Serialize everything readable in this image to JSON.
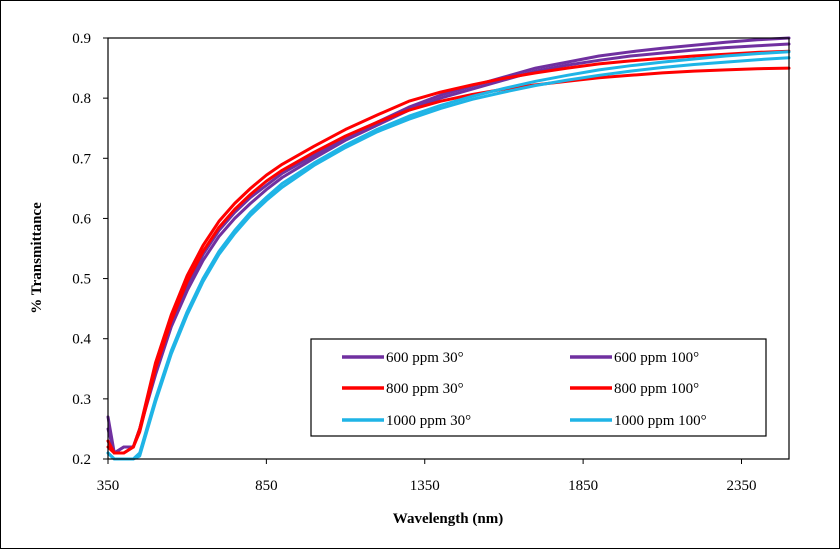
{
  "chart_data": {
    "type": "line",
    "title": "",
    "xlabel": "Wavelength (nm)",
    "ylabel": "% Transmittance",
    "xlim": [
      350,
      2500
    ],
    "ylim": [
      0.2,
      0.9
    ],
    "xticks": [
      350,
      850,
      1350,
      1850,
      2350
    ],
    "xtick_labels": [
      "350",
      "850",
      "1350",
      "1850",
      "2350"
    ],
    "yticks": [
      0.2,
      0.3,
      0.4,
      0.5,
      0.6,
      0.7,
      0.8,
      0.9
    ],
    "ytick_labels": [
      "0.2",
      "0.3",
      "0.4",
      "0.5",
      "0.6",
      "0.7",
      "0.8",
      "0.9"
    ],
    "grid": false,
    "legend_position": "bottom-right",
    "x": [
      350,
      370,
      400,
      430,
      450,
      500,
      550,
      600,
      650,
      700,
      750,
      800,
      850,
      900,
      1000,
      1100,
      1200,
      1300,
      1400,
      1500,
      1600,
      1700,
      1800,
      1900,
      2000,
      2100,
      2200,
      2300,
      2400,
      2500
    ],
    "series": [
      {
        "name": "600 ppm 30°",
        "color": "#7030a0",
        "values": [
          0.27,
          0.21,
          0.22,
          0.22,
          0.25,
          0.35,
          0.43,
          0.49,
          0.54,
          0.58,
          0.61,
          0.635,
          0.655,
          0.675,
          0.705,
          0.735,
          0.76,
          0.785,
          0.805,
          0.82,
          0.835,
          0.85,
          0.86,
          0.87,
          0.877,
          0.883,
          0.888,
          0.893,
          0.897,
          0.9
        ]
      },
      {
        "name": "600 ppm 100°",
        "color": "#7030a0",
        "values": [
          0.25,
          0.21,
          0.22,
          0.22,
          0.25,
          0.34,
          0.42,
          0.48,
          0.53,
          0.57,
          0.6,
          0.625,
          0.648,
          0.668,
          0.7,
          0.73,
          0.755,
          0.78,
          0.8,
          0.815,
          0.83,
          0.845,
          0.855,
          0.863,
          0.87,
          0.875,
          0.88,
          0.884,
          0.887,
          0.89
        ]
      },
      {
        "name": "800 ppm 30°",
        "color": "#ff0000",
        "values": [
          0.23,
          0.21,
          0.21,
          0.22,
          0.25,
          0.36,
          0.44,
          0.505,
          0.555,
          0.595,
          0.625,
          0.65,
          0.672,
          0.69,
          0.72,
          0.748,
          0.772,
          0.795,
          0.81,
          0.822,
          0.833,
          0.842,
          0.85,
          0.857,
          0.862,
          0.866,
          0.87,
          0.873,
          0.876,
          0.878
        ]
      },
      {
        "name": "800 ppm 100°",
        "color": "#ff0000",
        "values": [
          0.22,
          0.21,
          0.21,
          0.22,
          0.245,
          0.35,
          0.43,
          0.495,
          0.545,
          0.585,
          0.615,
          0.64,
          0.662,
          0.68,
          0.71,
          0.737,
          0.76,
          0.78,
          0.795,
          0.806,
          0.815,
          0.822,
          0.828,
          0.834,
          0.838,
          0.842,
          0.845,
          0.847,
          0.849,
          0.85
        ]
      },
      {
        "name": "1000 ppm 30°",
        "color": "#1fb4e6",
        "values": [
          0.21,
          0.2,
          0.2,
          0.2,
          0.21,
          0.3,
          0.38,
          0.445,
          0.5,
          0.545,
          0.58,
          0.61,
          0.635,
          0.658,
          0.692,
          0.722,
          0.748,
          0.77,
          0.788,
          0.803,
          0.816,
          0.828,
          0.838,
          0.847,
          0.854,
          0.86,
          0.865,
          0.87,
          0.874,
          0.877
        ]
      },
      {
        "name": "1000 ppm 100°",
        "color": "#1fb4e6",
        "values": [
          0.21,
          0.2,
          0.2,
          0.2,
          0.205,
          0.295,
          0.375,
          0.44,
          0.495,
          0.54,
          0.575,
          0.605,
          0.63,
          0.652,
          0.688,
          0.718,
          0.744,
          0.765,
          0.783,
          0.798,
          0.81,
          0.821,
          0.83,
          0.838,
          0.845,
          0.851,
          0.856,
          0.86,
          0.864,
          0.867
        ]
      }
    ]
  }
}
